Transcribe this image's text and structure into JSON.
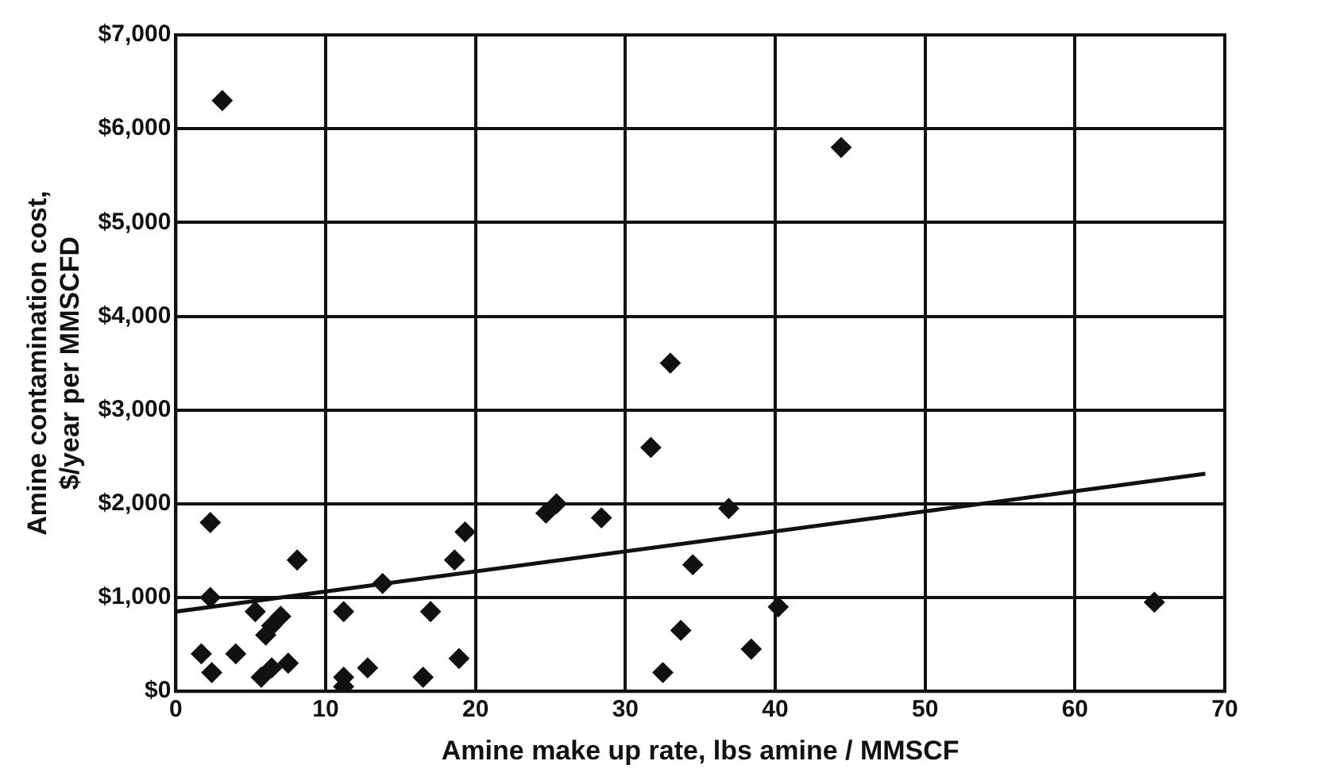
{
  "chart_data": {
    "type": "scatter",
    "xlabel": "Amine make up rate, lbs amine / MMSCF",
    "ylabel": "Amine contamination cost, $/year per MMSCFD",
    "xlim": [
      0,
      70
    ],
    "xticks": [
      0,
      10,
      20,
      30,
      40,
      50,
      60,
      70
    ],
    "ylim": [
      0,
      7000
    ],
    "yticks": [
      {
        "value": 0,
        "label": "$0"
      },
      {
        "value": 1000,
        "label": "$1,000"
      },
      {
        "value": 2000,
        "label": "$2,000"
      },
      {
        "value": 3000,
        "label": "$3,000"
      },
      {
        "value": 4000,
        "label": "$4,000"
      },
      {
        "value": 5000,
        "label": "$5,000"
      },
      {
        "value": 6000,
        "label": "$6,000"
      },
      {
        "value": 7000,
        "label": "$7,000"
      }
    ],
    "grid": true,
    "marker": "diamond",
    "series": [
      {
        "color": "#111111",
        "x": [
          3.1,
          44.4,
          33,
          31.7,
          24.7,
          25.4,
          28.4,
          36.9,
          19.3,
          18.6,
          13.8,
          34.5,
          17.0,
          40.2,
          33.7,
          38.4,
          18.9,
          16.5,
          32.5,
          2.3,
          8.1,
          2.3,
          5.3,
          7.0,
          6.4,
          6.0,
          11.2,
          1.7,
          4.0,
          2.4,
          5.7,
          6.4,
          7.5,
          11.2,
          11.2,
          12.8,
          65.3
        ],
        "values": [
          6300,
          5800,
          3500,
          2600,
          1900,
          2000,
          1850,
          1950,
          1700,
          1400,
          1150,
          1350,
          850,
          900,
          650,
          450,
          350,
          150,
          200,
          1800,
          1400,
          1000,
          850,
          800,
          700,
          600,
          850,
          400,
          400,
          200,
          150,
          250,
          300,
          150,
          50,
          250,
          950
        ]
      },
      {
        "type": "line",
        "color": "#111111",
        "marker": "none",
        "x": [
          0,
          68.7
        ],
        "values": [
          850,
          2320
        ]
      }
    ]
  }
}
